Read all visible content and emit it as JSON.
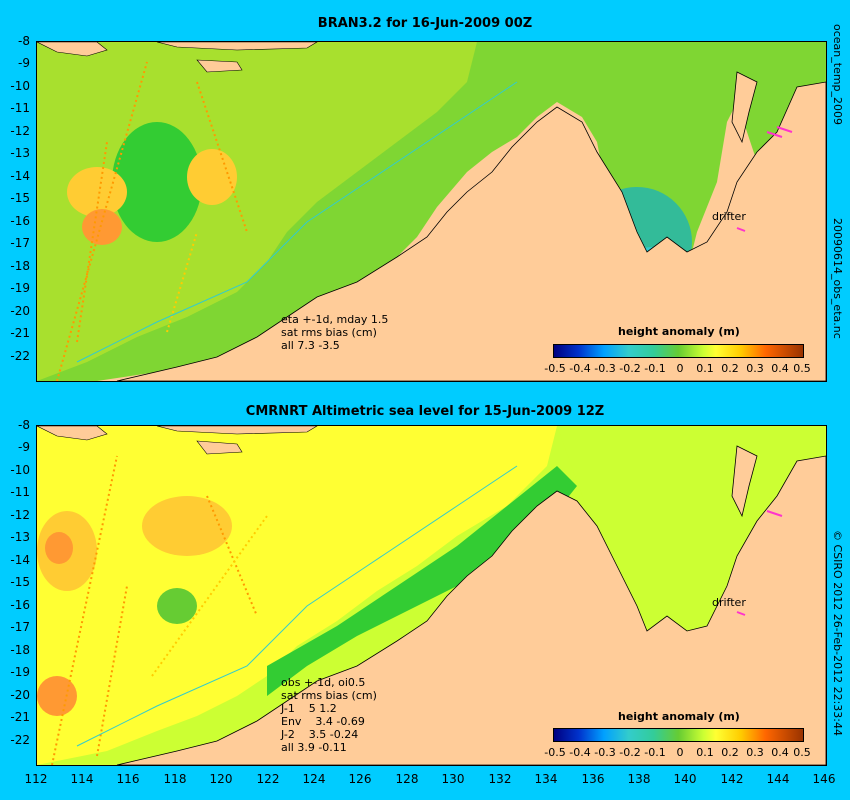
{
  "top_panel": {
    "title": "BRAN3.2 for 16-Jun-2009 00Z",
    "side_label": "20090614_obs_eta.nc",
    "side_label_top": "ocean_temp_2009",
    "info_lines": [
      "eta +-1d, mday 1.5",
      "sat rms bias (cm)",
      "all 7.3 -3.5"
    ],
    "colorbar_title": "height anomaly (m)",
    "drifter_label": "drifter"
  },
  "bottom_panel": {
    "title": "CMRNRT Altimetric sea level  for 15-Jun-2009 12Z",
    "side_label": "© CSIRO 2012  26-Feb-2012 22:33:44",
    "info_lines": [
      "obs +-1d, oi0.5",
      "sat rms bias (cm)",
      "J-1    5 1.2",
      "Env    3.4 -0.69",
      "J-2    3.5 -0.24",
      "all 3.9 -0.11"
    ],
    "colorbar_title": "height anomaly (m)",
    "drifter_label": "drifter"
  },
  "y_ticks": [
    "-8",
    "-9",
    "-10",
    "-11",
    "-12",
    "-13",
    "-14",
    "-15",
    "-16",
    "-17",
    "-18",
    "-19",
    "-20",
    "-21",
    "-22"
  ],
  "x_ticks": [
    "112",
    "114",
    "116",
    "118",
    "120",
    "122",
    "124",
    "126",
    "128",
    "130",
    "132",
    "134",
    "136",
    "138",
    "140",
    "142",
    "144",
    "146"
  ],
  "colorbar_ticks": [
    "-0.5",
    "-0.4",
    "-0.3",
    "-0.2",
    "-0.1",
    "0",
    "0.1",
    "0.2",
    "0.3",
    "0.4",
    "0.5"
  ],
  "colors": {
    "background": "#00CCFF",
    "land": "#FFCC99",
    "drifter": "#FF33CC"
  }
}
